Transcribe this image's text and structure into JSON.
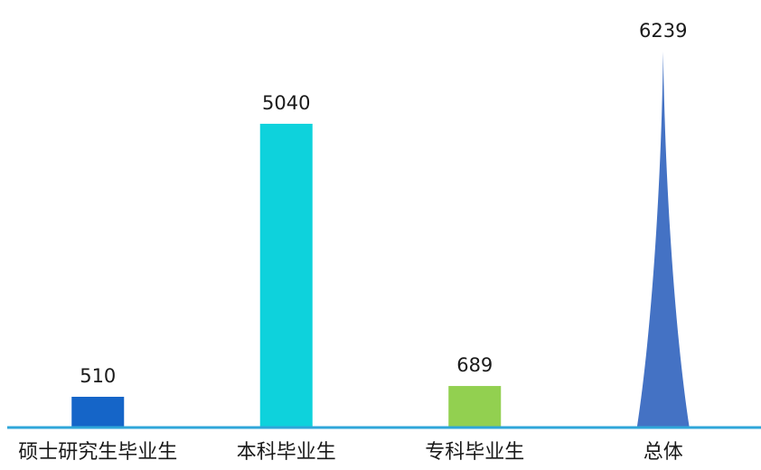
{
  "chart_data": {
    "type": "bar",
    "categories": [
      "硕士研究生毕业生",
      "本科毕业生",
      "专科毕业生",
      "总体"
    ],
    "values": [
      510,
      5040,
      689,
      6239
    ],
    "value_labels": [
      "510",
      "5040",
      "689",
      "6239"
    ],
    "colors": [
      "#1565C8",
      "#0ED2DC",
      "#92D050",
      "#4472C4"
    ],
    "mark_shapes": [
      "rect",
      "rect",
      "rect",
      "spike"
    ],
    "axis_color": "#2FA6D9",
    "ylim": [
      0,
      6239
    ],
    "grid": false,
    "legend": "none"
  }
}
